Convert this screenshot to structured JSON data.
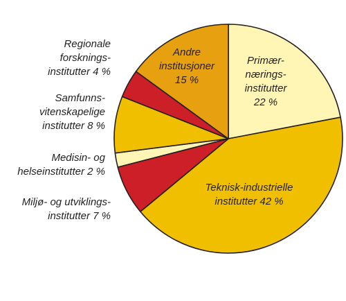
{
  "chart_data": {
    "type": "pie",
    "title": "",
    "slices": [
      {
        "label": "Primær-\nnærings-\ninstitutter\n22 %",
        "value": 22,
        "color": "#fff6b5"
      },
      {
        "label": "Teknisk-industrielle\ninstitutter 42 %",
        "value": 42,
        "color": "#f0c000"
      },
      {
        "label": "Miljø- og utviklings-\ninstitutter 7 %",
        "value": 7,
        "color": "#cc1f27"
      },
      {
        "label": "Medisin- og\nhelseinstitutter 2 %",
        "value": 2,
        "color": "#fff6b5"
      },
      {
        "label": "Samfunns-\nvitenskapelige\ninstitutter 8 %",
        "value": 8,
        "color": "#f0c000"
      },
      {
        "label": "Regionale\nforsknings-\ninstitutter 4 %",
        "value": 4,
        "color": "#cc1f27"
      },
      {
        "label": "Andre\ninstitusjoner\n15 %",
        "value": 15,
        "color": "#e6a010"
      }
    ],
    "start": "12 o'clock",
    "direction": "clockwise",
    "legend": "none"
  }
}
